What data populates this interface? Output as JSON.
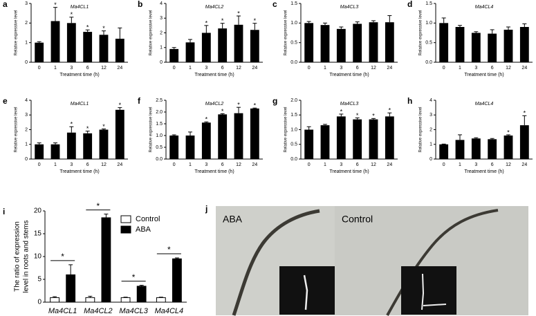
{
  "chart_data": [
    {
      "type": "bar",
      "label": "a",
      "title": "Ma4CL1",
      "xlabel": "Treatment time (h)",
      "ylabel": "Relative expressive level",
      "color": "#000000",
      "categories": [
        "0",
        "1",
        "3",
        "6",
        "12",
        "24"
      ],
      "values": [
        1.0,
        2.1,
        2.0,
        1.55,
        1.4,
        1.2
      ],
      "errors": [
        0.05,
        0.7,
        0.3,
        0.1,
        0.2,
        0.55
      ],
      "significance": [
        null,
        "*",
        "*",
        "*",
        "*",
        null
      ],
      "ylim": [
        0,
        3
      ],
      "yticks": [
        0,
        1,
        2,
        3
      ]
    },
    {
      "type": "bar",
      "label": "b",
      "title": "Ma4CL2",
      "xlabel": "Treatment time (h)",
      "ylabel": "Relative expressive level",
      "color": "#000000",
      "categories": [
        "0",
        "1",
        "3",
        "6",
        "12",
        "24"
      ],
      "values": [
        0.9,
        1.35,
        2.0,
        2.3,
        2.55,
        2.2
      ],
      "errors": [
        0.1,
        0.2,
        0.5,
        0.35,
        0.6,
        0.45
      ],
      "significance": [
        null,
        null,
        "*",
        "*",
        "*",
        "*"
      ],
      "ylim": [
        0,
        4
      ],
      "yticks": [
        0,
        1,
        2,
        3,
        4
      ]
    },
    {
      "type": "bar",
      "label": "c",
      "title": "Ma4CL3",
      "xlabel": "Treatment time (h)",
      "ylabel": "Relative expressive level",
      "color": "#000000",
      "categories": [
        "0",
        "1",
        "3",
        "6",
        "12",
        "24"
      ],
      "values": [
        1.0,
        0.95,
        0.85,
        0.98,
        1.02,
        1.02
      ],
      "errors": [
        0.04,
        0.05,
        0.05,
        0.05,
        0.04,
        0.17
      ],
      "significance": [
        null,
        null,
        null,
        null,
        null,
        null
      ],
      "ylim": [
        0,
        1.5
      ],
      "yticks": [
        {
          "value": 0,
          "label": "0.0"
        },
        0.5,
        {
          "value": 1,
          "label": "1.0"
        },
        1.5
      ]
    },
    {
      "type": "bar",
      "label": "d",
      "title": "Ma4CL4",
      "xlabel": "Treatment time (h)",
      "ylabel": "Relative expressive level",
      "color": "#000000",
      "categories": [
        "0",
        "1",
        "3",
        "6",
        "12",
        "24"
      ],
      "values": [
        1.0,
        0.9,
        0.75,
        0.73,
        0.83,
        0.9
      ],
      "errors": [
        0.13,
        0.04,
        0.03,
        0.1,
        0.07,
        0.08
      ],
      "significance": [
        null,
        null,
        null,
        null,
        null,
        null
      ],
      "ylim": [
        0,
        1.5
      ],
      "yticks": [
        {
          "value": 0,
          "label": "0.0"
        },
        0.5,
        {
          "value": 1,
          "label": "1.0"
        },
        1.5
      ]
    },
    {
      "type": "bar",
      "label": "e",
      "title": "Ma4CL1",
      "xlabel": "Treatment time (h)",
      "ylabel": "Relative expressive level",
      "color": "#000000",
      "categories": [
        "0",
        "1",
        "3",
        "6",
        "12",
        "24"
      ],
      "values": [
        1.0,
        1.0,
        1.8,
        1.75,
        2.0,
        3.35
      ],
      "errors": [
        0.1,
        0.1,
        0.4,
        0.15,
        0.05,
        0.15
      ],
      "significance": [
        null,
        null,
        "*",
        "*",
        "*",
        "*"
      ],
      "ylim": [
        0,
        4
      ],
      "yticks": [
        0,
        1,
        2,
        3,
        4
      ]
    },
    {
      "type": "bar",
      "label": "f",
      "title": "Ma4CL2",
      "xlabel": "Treatment time (h)",
      "ylabel": "Relative expressive level",
      "color": "#000000",
      "categories": [
        "0",
        "1",
        "3",
        "6",
        "12",
        "24"
      ],
      "values": [
        1.0,
        1.0,
        1.55,
        1.9,
        1.95,
        2.15
      ],
      "errors": [
        0.03,
        0.15,
        0.03,
        0.03,
        0.25,
        0.02
      ],
      "significance": [
        null,
        null,
        "*",
        "*",
        "*",
        "*"
      ],
      "ylim": [
        0,
        2.5
      ],
      "yticks": [
        {
          "value": 0,
          "label": "0.0"
        },
        0.5,
        {
          "value": 1,
          "label": "1.0"
        },
        1.5,
        {
          "value": 2,
          "label": "2.0"
        },
        2.5
      ]
    },
    {
      "type": "bar",
      "label": "g",
      "title": "Ma4CL3",
      "xlabel": "Treatment time (h)",
      "ylabel": "Relative expressive level",
      "color": "#000000",
      "categories": [
        "0",
        "1",
        "3",
        "6",
        "12",
        "24"
      ],
      "values": [
        1.0,
        1.15,
        1.45,
        1.35,
        1.35,
        1.45
      ],
      "errors": [
        0.1,
        0.03,
        0.08,
        0.05,
        0.03,
        0.12
      ],
      "significance": [
        null,
        null,
        "*",
        "*",
        "*",
        "*"
      ],
      "ylim": [
        0,
        2
      ],
      "yticks": [
        {
          "value": 0,
          "label": "0.0"
        },
        0.5,
        {
          "value": 1,
          "label": "1.0"
        },
        1.5,
        {
          "value": 2,
          "label": "2.0"
        }
      ]
    },
    {
      "type": "bar",
      "label": "h",
      "title": "Ma4CL4",
      "xlabel": "Treatment time (h)",
      "ylabel": "Relative expressive level",
      "color": "#000000",
      "categories": [
        "0",
        "1",
        "3",
        "6",
        "12",
        "24"
      ],
      "values": [
        1.0,
        1.3,
        1.4,
        1.35,
        1.6,
        2.3
      ],
      "errors": [
        0.02,
        0.35,
        0.05,
        0.05,
        0.05,
        0.65
      ],
      "significance": [
        null,
        null,
        null,
        null,
        "*",
        "*"
      ],
      "ylim": [
        0,
        4
      ],
      "yticks": [
        0,
        1,
        2,
        3,
        4
      ]
    },
    {
      "type": "grouped_bar",
      "label": "i",
      "ylabel": [
        "The ratio of expression",
        "level in roots and stems"
      ],
      "categories": [
        "Ma4CL1",
        "Ma4CL2",
        "Ma4CL3",
        "Ma4CL4"
      ],
      "series": [
        {
          "name": "Control",
          "color": "#ffffff",
          "values": [
            1,
            1,
            1,
            1
          ],
          "errors": [
            0.2,
            0.3,
            0.1,
            0.1
          ]
        },
        {
          "name": "ABA",
          "color": "#000000",
          "values": [
            6,
            18.5,
            3.5,
            9.5
          ],
          "errors": [
            2.2,
            0.8,
            0.2,
            0.2
          ]
        }
      ],
      "significance": [
        "*",
        "*",
        "*",
        "*"
      ],
      "ylim": [
        0,
        20
      ],
      "yticks": [
        0,
        5,
        10,
        15,
        20
      ]
    }
  ],
  "photo": {
    "label": "j",
    "captions": [
      "ABA",
      "Control"
    ]
  }
}
